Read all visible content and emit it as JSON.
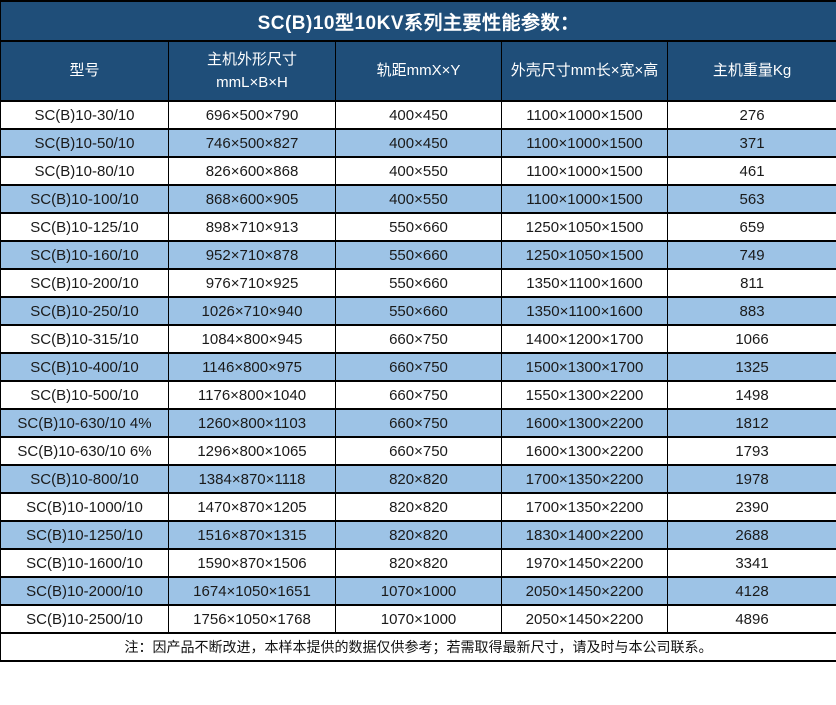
{
  "table": {
    "title": "SC(B)10型10KV系列主要性能参数：",
    "header": {
      "model": "型号",
      "dimensions_line1": "主机外形尺寸",
      "dimensions_line2": "mmL×B×H",
      "track_gauge": "轨距mmX×Y",
      "shell_size": "外壳尺寸mm长×宽×高",
      "weight": "主机重量Kg"
    },
    "rows": [
      [
        "SC(B)10-30/10",
        "696×500×790",
        "400×450",
        "1100×1000×1500",
        "276"
      ],
      [
        "SC(B)10-50/10",
        "746×500×827",
        "400×450",
        "1100×1000×1500",
        "371"
      ],
      [
        "SC(B)10-80/10",
        "826×600×868",
        "400×550",
        "1100×1000×1500",
        "461"
      ],
      [
        "SC(B)10-100/10",
        "868×600×905",
        "400×550",
        "1100×1000×1500",
        "563"
      ],
      [
        "SC(B)10-125/10",
        "898×710×913",
        "550×660",
        "1250×1050×1500",
        "659"
      ],
      [
        "SC(B)10-160/10",
        "952×710×878",
        "550×660",
        "1250×1050×1500",
        "749"
      ],
      [
        "SC(B)10-200/10",
        "976×710×925",
        "550×660",
        "1350×1100×1600",
        "811"
      ],
      [
        "SC(B)10-250/10",
        "1026×710×940",
        "550×660",
        "1350×1100×1600",
        "883"
      ],
      [
        "SC(B)10-315/10",
        "1084×800×945",
        "660×750",
        "1400×1200×1700",
        "1066"
      ],
      [
        "SC(B)10-400/10",
        "1146×800×975",
        "660×750",
        "1500×1300×1700",
        "1325"
      ],
      [
        "SC(B)10-500/10",
        "1176×800×1040",
        "660×750",
        "1550×1300×2200",
        "1498"
      ],
      [
        "SC(B)10-630/10 4%",
        "1260×800×1103",
        "660×750",
        "1600×1300×2200",
        "1812"
      ],
      [
        "SC(B)10-630/10 6%",
        "1296×800×1065",
        "660×750",
        "1600×1300×2200",
        "1793"
      ],
      [
        "SC(B)10-800/10",
        "1384×870×1118",
        "820×820",
        "1700×1350×2200",
        "1978"
      ],
      [
        "SC(B)10-1000/10",
        "1470×870×1205",
        "820×820",
        "1700×1350×2200",
        "2390"
      ],
      [
        "SC(B)10-1250/10",
        "1516×870×1315",
        "820×820",
        "1830×1400×2200",
        "2688"
      ],
      [
        "SC(B)10-1600/10",
        "1590×870×1506",
        "820×820",
        "1970×1450×2200",
        "3341"
      ],
      [
        "SC(B)10-2000/10",
        "1674×1050×1651",
        "1070×1000",
        "2050×1450×2200",
        "4128"
      ],
      [
        "SC(B)10-2500/10",
        "1756×1050×1768",
        "1070×1000",
        "2050×1450×2200",
        "4896"
      ]
    ],
    "note": "注：因产品不断改进，本样本提供的数据仅供参考；若需取得最新尺寸，请及时与本公司联系。",
    "colors": {
      "header_bg": "#1F4E79",
      "stripe_bg": "#9DC3E6",
      "border": "#000000"
    }
  }
}
